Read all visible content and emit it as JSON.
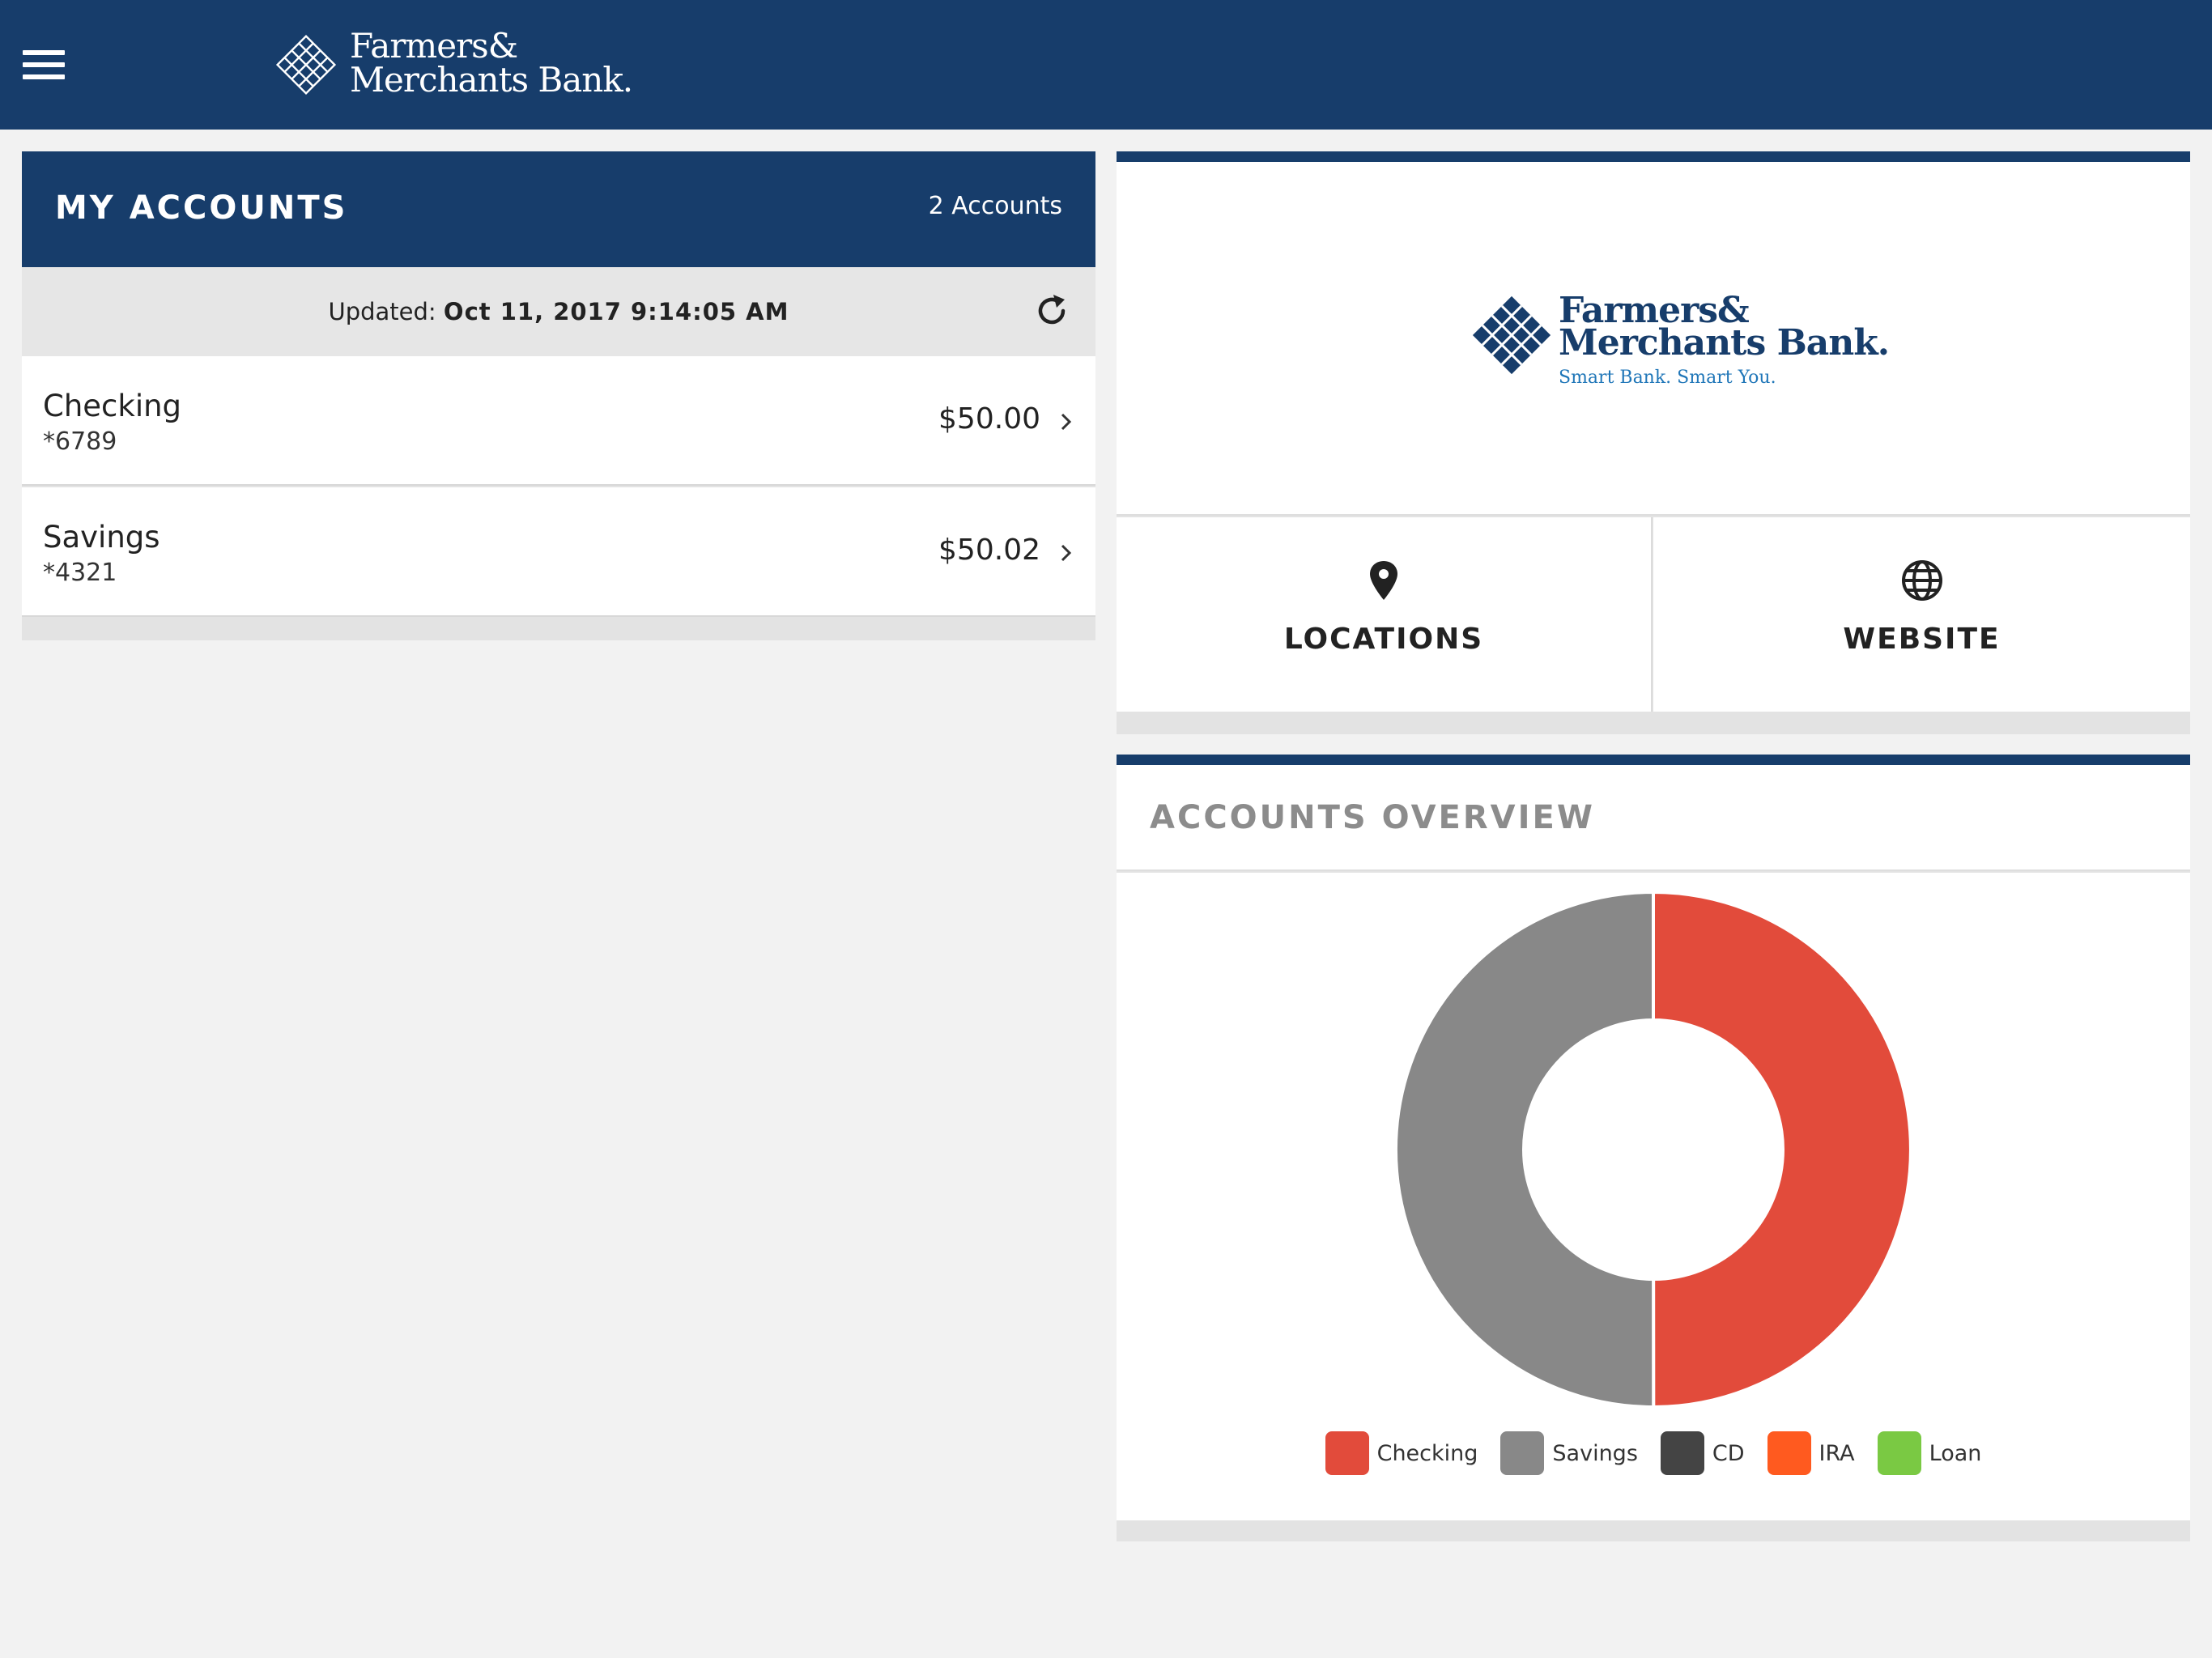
{
  "brand": {
    "name_line1": "Farmers&",
    "name_line2": "Merchants Bank.",
    "tagline": "Smart Bank. Smart You.",
    "colors": {
      "navy": "#173d6b",
      "tagline_blue": "#1f76b8"
    }
  },
  "header": {
    "menu_icon": "hamburger-menu-icon"
  },
  "accounts_panel": {
    "title": "MY ACCOUNTS",
    "count_label": "2 Accounts",
    "updated_label": "Updated:",
    "updated_value": "Oct 11, 2017 9:14:05 AM",
    "refresh_icon": "refresh-icon",
    "accounts": [
      {
        "name": "Checking",
        "number": "*6789",
        "balance": "$50.00"
      },
      {
        "name": "Savings",
        "number": "*4321",
        "balance": "$50.02"
      }
    ]
  },
  "quick_links": {
    "locations_label": "LOCATIONS",
    "locations_icon": "map-pin-icon",
    "website_label": "WEBSITE",
    "website_icon": "globe-icon"
  },
  "overview": {
    "title": "ACCOUNTS OVERVIEW"
  },
  "chart_data": {
    "type": "pie",
    "style": "donut",
    "categories": [
      "Checking",
      "Savings",
      "CD",
      "IRA",
      "Loan"
    ],
    "values": [
      50.0,
      50.02,
      0,
      0,
      0
    ],
    "colors": [
      "#e24b3b",
      "#888888",
      "#444444",
      "#ff5a1f",
      "#7ac943"
    ],
    "legend_position": "bottom"
  }
}
